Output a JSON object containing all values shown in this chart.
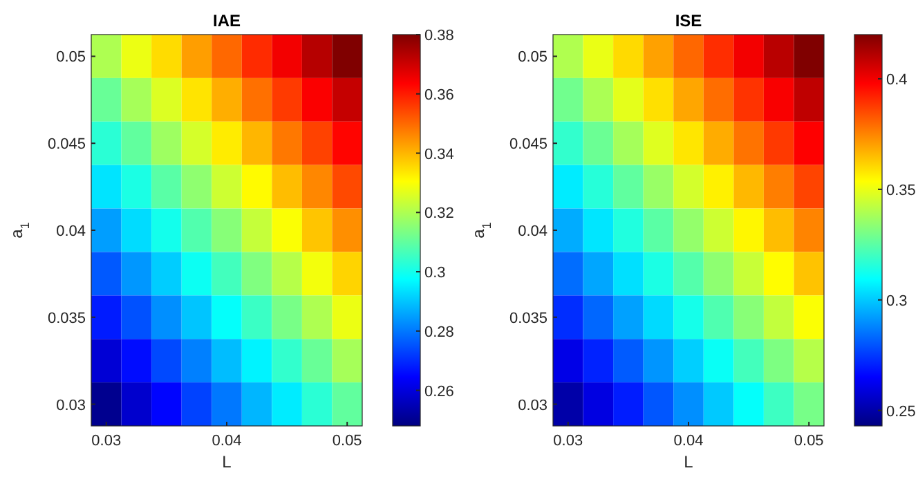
{
  "chart_data": [
    {
      "type": "heatmap",
      "title": "IAE",
      "xlabel": "L",
      "ylabel": "a$_{1}$",
      "categories": [
        "0.03",
        null,
        null,
        null,
        "0.04",
        null,
        null,
        null,
        "0.05"
      ],
      "y_categories": [
        "0.05",
        null,
        "0.045",
        null,
        "0.04",
        null,
        "0.035",
        null,
        "0.03"
      ],
      "clim": [
        0.248,
        0.38
      ],
      "cticks": [
        0.26,
        0.28,
        0.3,
        0.32,
        0.34,
        0.36,
        0.38
      ],
      "cells": [
        [
          0.32,
          0.328,
          0.335,
          0.343,
          0.35,
          0.358,
          0.365,
          0.373,
          0.38
        ],
        [
          0.311,
          0.319,
          0.326,
          0.334,
          0.341,
          0.349,
          0.356,
          0.364,
          0.371
        ],
        [
          0.303,
          0.31,
          0.318,
          0.325,
          0.333,
          0.34,
          0.348,
          0.355,
          0.363
        ],
        [
          0.294,
          0.301,
          0.309,
          0.316,
          0.324,
          0.331,
          0.339,
          0.346,
          0.354
        ],
        [
          0.285,
          0.293,
          0.3,
          0.308,
          0.315,
          0.323,
          0.33,
          0.338,
          0.345
        ],
        [
          0.276,
          0.284,
          0.291,
          0.299,
          0.306,
          0.314,
          0.321,
          0.329,
          0.336
        ],
        [
          0.268,
          0.275,
          0.283,
          0.29,
          0.298,
          0.305,
          0.313,
          0.32,
          0.328
        ],
        [
          0.259,
          0.266,
          0.274,
          0.281,
          0.289,
          0.296,
          0.304,
          0.311,
          0.319
        ],
        [
          0.25,
          0.258,
          0.265,
          0.273,
          0.28,
          0.288,
          0.295,
          0.303,
          0.31
        ]
      ]
    },
    {
      "type": "heatmap",
      "title": "ISE",
      "xlabel": "L",
      "ylabel": "a$_{1}$",
      "categories": [
        "0.03",
        null,
        null,
        null,
        "0.04",
        null,
        null,
        null,
        "0.05"
      ],
      "y_categories": [
        "0.05",
        null,
        "0.045",
        null,
        "0.04",
        null,
        "0.035",
        null,
        "0.03"
      ],
      "clim": [
        0.243,
        0.42
      ],
      "cticks": [
        0.25,
        0.3,
        0.35,
        0.4
      ],
      "cells": [
        [
          0.34,
          0.35,
          0.36,
          0.37,
          0.38,
          0.39,
          0.4,
          0.41,
          0.42
        ],
        [
          0.329,
          0.339,
          0.349,
          0.359,
          0.369,
          0.379,
          0.389,
          0.399,
          0.409
        ],
        [
          0.318,
          0.328,
          0.338,
          0.348,
          0.358,
          0.368,
          0.378,
          0.388,
          0.398
        ],
        [
          0.306,
          0.316,
          0.326,
          0.336,
          0.346,
          0.356,
          0.366,
          0.376,
          0.386
        ],
        [
          0.295,
          0.305,
          0.315,
          0.325,
          0.335,
          0.345,
          0.355,
          0.365,
          0.375
        ],
        [
          0.284,
          0.294,
          0.304,
          0.314,
          0.324,
          0.334,
          0.344,
          0.354,
          0.364
        ],
        [
          0.273,
          0.283,
          0.293,
          0.303,
          0.313,
          0.323,
          0.333,
          0.343,
          0.353
        ],
        [
          0.261,
          0.271,
          0.281,
          0.291,
          0.301,
          0.311,
          0.321,
          0.331,
          0.341
        ],
        [
          0.25,
          0.26,
          0.27,
          0.28,
          0.29,
          0.3,
          0.31,
          0.32,
          0.33
        ]
      ]
    }
  ]
}
